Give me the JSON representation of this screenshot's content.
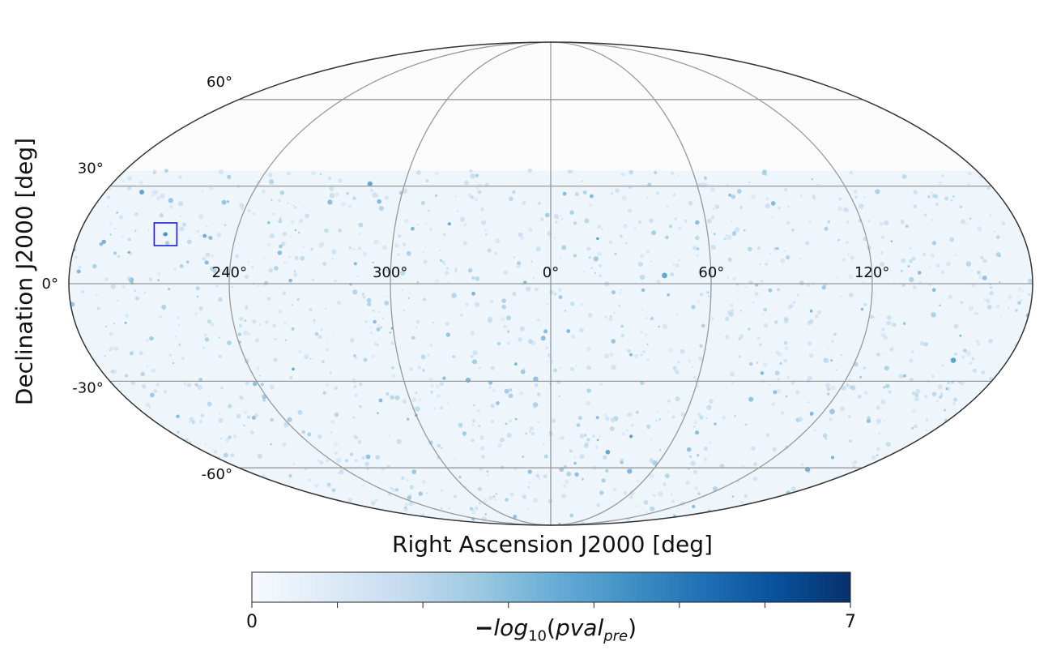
{
  "chart_data": {
    "type": "heatmap",
    "projection": "mollweide",
    "xlabel": "Right Ascension J2000 [deg]",
    "ylabel": "Declination J2000 [deg]",
    "ra_tick_labels": [
      {
        "ra": 120,
        "label": "120°"
      },
      {
        "ra": 60,
        "label": "60°"
      },
      {
        "ra": 0,
        "label": "0°"
      },
      {
        "ra": 300,
        "label": "300°"
      },
      {
        "ra": 240,
        "label": "240°"
      }
    ],
    "dec_tick_labels": [
      {
        "dec": 60,
        "label": "60°"
      },
      {
        "dec": 30,
        "label": "30°"
      },
      {
        "dec": 0,
        "label": "0°"
      },
      {
        "dec": -30,
        "label": "-30°"
      },
      {
        "dec": -60,
        "label": "-60°"
      }
    ],
    "coverage_dec_max": 35,
    "hotspot": {
      "ra": 213,
      "dec": 15
    },
    "colorbar": {
      "min": 0,
      "max": 7,
      "min_label": "0",
      "max_label": "7",
      "label_prefix": "−",
      "label_func": "log",
      "label_func_sub": "10",
      "label_arg": "pval",
      "label_arg_sub": "pre",
      "cmap": "Blues",
      "colors": [
        "#f7fbff",
        "#deebf7",
        "#c6dbef",
        "#9ecae1",
        "#6baed6",
        "#4292c6",
        "#2171b5",
        "#08519c",
        "#08306b"
      ]
    },
    "colors": {
      "grid": "#999999",
      "outline": "#333333",
      "marker": "#1f1fd6"
    }
  }
}
